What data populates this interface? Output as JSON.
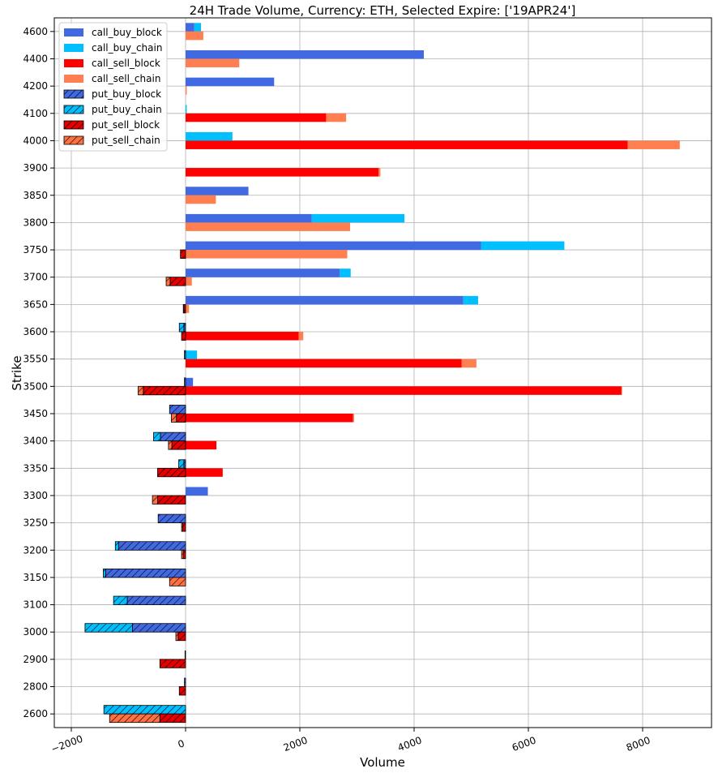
{
  "chart_data": {
    "type": "bar",
    "orientation": "horizontal-stacked",
    "title": "24H Trade Volume, Currency: ETH, Selected Expire: ['19APR24']",
    "xlabel": "Volume",
    "ylabel": "Strike",
    "xlim": [
      -2000,
      9200
    ],
    "x_ticks": [
      -2000,
      0,
      2000,
      4000,
      6000,
      8000
    ],
    "x_tick_labels": [
      "−2000",
      "0",
      "2000",
      "4000",
      "6000",
      "8000"
    ],
    "grid": true,
    "legend_position": "top-left",
    "categories": [
      "4600",
      "4400",
      "4200",
      "4100",
      "4000",
      "3900",
      "3850",
      "3800",
      "3750",
      "3700",
      "3650",
      "3600",
      "3550",
      "3500",
      "3450",
      "3400",
      "3350",
      "3300",
      "3250",
      "3200",
      "3150",
      "3100",
      "3000",
      "2900",
      "2800",
      "2600"
    ],
    "series": [
      {
        "name": "call_buy_block",
        "color": "#4169e1",
        "hatch": false,
        "row": "upper",
        "values": [
          150,
          4170,
          1550,
          0,
          0,
          0,
          1100,
          2210,
          5170,
          2700,
          4860,
          0,
          0,
          130,
          0,
          0,
          0,
          390,
          0,
          0,
          0,
          0,
          0,
          0,
          0,
          0
        ]
      },
      {
        "name": "call_buy_chain",
        "color": "#00bfff",
        "hatch": false,
        "row": "upper",
        "values": [
          120,
          0,
          0,
          20,
          820,
          0,
          0,
          1620,
          1460,
          190,
          260,
          0,
          200,
          0,
          0,
          0,
          0,
          0,
          0,
          0,
          0,
          0,
          0,
          0,
          0,
          0
        ]
      },
      {
        "name": "call_sell_block",
        "color": "#ff0000",
        "hatch": false,
        "row": "lower",
        "values": [
          0,
          0,
          0,
          2460,
          7740,
          3380,
          0,
          0,
          0,
          0,
          0,
          1980,
          4830,
          7630,
          2930,
          540,
          650,
          0,
          0,
          0,
          0,
          0,
          0,
          0,
          0,
          0
        ]
      },
      {
        "name": "call_sell_chain",
        "color": "#ff7f50",
        "hatch": false,
        "row": "lower",
        "values": [
          310,
          940,
          20,
          350,
          910,
          30,
          530,
          2880,
          2830,
          110,
          60,
          80,
          260,
          10,
          20,
          0,
          0,
          0,
          0,
          0,
          0,
          0,
          0,
          0,
          0,
          0
        ]
      },
      {
        "name": "put_buy_block",
        "color": "#4169e1",
        "hatch": true,
        "row": "upper",
        "values": [
          0,
          0,
          0,
          0,
          0,
          0,
          0,
          0,
          0,
          0,
          0,
          30,
          20,
          20,
          280,
          440,
          30,
          0,
          480,
          1170,
          1400,
          1020,
          930,
          10,
          20,
          0
        ]
      },
      {
        "name": "put_buy_chain",
        "color": "#00bfff",
        "hatch": true,
        "row": "upper",
        "values": [
          0,
          0,
          0,
          0,
          0,
          0,
          0,
          0,
          0,
          0,
          0,
          80,
          0,
          0,
          0,
          120,
          90,
          0,
          0,
          60,
          40,
          240,
          830,
          0,
          0,
          1430
        ]
      },
      {
        "name": "put_sell_block",
        "color": "#e50000",
        "hatch": true,
        "row": "lower",
        "values": [
          0,
          0,
          0,
          0,
          0,
          0,
          0,
          0,
          90,
          270,
          30,
          70,
          0,
          740,
          160,
          240,
          490,
          490,
          50,
          40,
          0,
          0,
          130,
          450,
          110,
          450
        ]
      },
      {
        "name": "put_sell_chain",
        "color": "#ff7043",
        "hatch": true,
        "row": "lower",
        "values": [
          0,
          0,
          0,
          0,
          0,
          0,
          0,
          0,
          0,
          70,
          10,
          0,
          0,
          90,
          90,
          60,
          0,
          90,
          20,
          30,
          280,
          0,
          40,
          0,
          0,
          880
        ]
      }
    ]
  }
}
